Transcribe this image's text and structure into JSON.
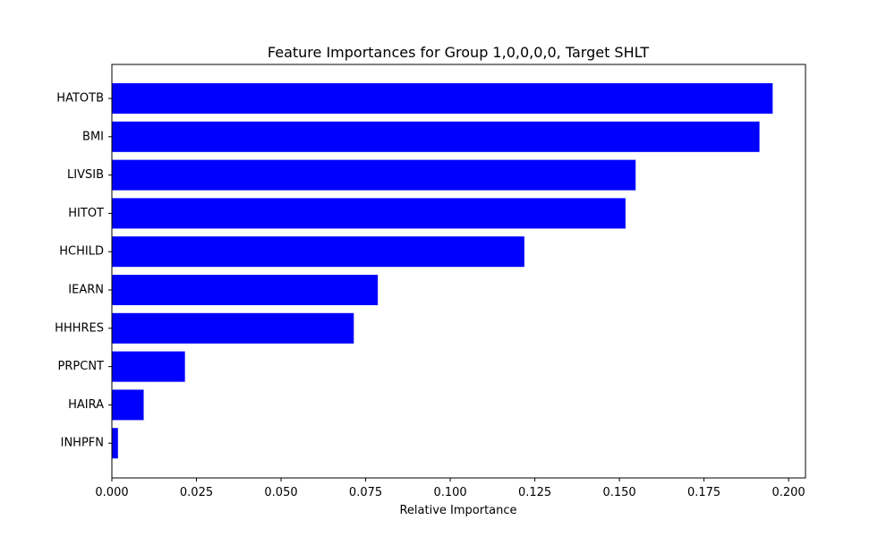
{
  "chart_data": {
    "type": "bar",
    "orientation": "horizontal",
    "title": "Feature Importances for Group 1,0,0,0,0, Target SHLT",
    "xlabel": "Relative Importance",
    "ylabel": "",
    "xlim": [
      0,
      0.205
    ],
    "xticks": [
      0.0,
      0.025,
      0.05,
      0.075,
      0.1,
      0.125,
      0.15,
      0.175,
      0.2
    ],
    "xtick_labels": [
      "0.000",
      "0.025",
      "0.050",
      "0.075",
      "0.100",
      "0.125",
      "0.150",
      "0.175",
      "0.200"
    ],
    "categories": [
      "HATOTB",
      "BMI",
      "LIVSIB",
      "HITOT",
      "HCHILD",
      "IEARN",
      "HHHRES",
      "PRPCNT",
      "HAIRA",
      "INHPFN"
    ],
    "values": [
      0.1953,
      0.1914,
      0.1548,
      0.1518,
      0.1219,
      0.0786,
      0.0715,
      0.0216,
      0.0094,
      0.0018
    ],
    "bar_color": "#0000ff",
    "grid": false,
    "legend": "none"
  }
}
